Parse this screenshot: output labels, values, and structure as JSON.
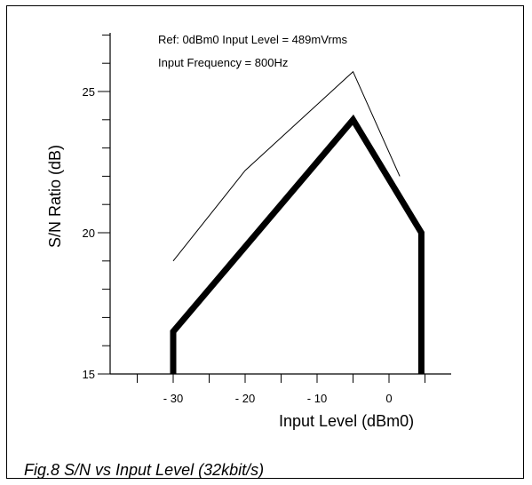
{
  "chart_data": {
    "type": "line",
    "title": "",
    "xlabel": "Input Level (dBm0)",
    "ylabel": "S/N Ratio (dB)",
    "xlim": [
      -38,
      5
    ],
    "ylim": [
      15,
      27
    ],
    "x_ticks": [
      -30,
      -20,
      -10,
      0
    ],
    "x_tick_labels": [
      "- 30",
      "- 20",
      "- 10",
      "0"
    ],
    "y_ticks": [
      15,
      20,
      25
    ],
    "y_tick_labels": [
      "15",
      "20",
      "25"
    ],
    "annotations": [
      "Ref: 0dBm0 Input Level = 489mVrms",
      "Input Frequency = 800Hz"
    ],
    "grid": false,
    "series": [
      {
        "style": "thin",
        "color": "#000000",
        "x": [
          -30,
          -20,
          -5,
          1.5
        ],
        "y": [
          19.0,
          22.2,
          25.7,
          22.0
        ]
      },
      {
        "style": "thick",
        "color": "#000000",
        "x": [
          -30,
          -30,
          -5,
          4.5,
          4.5
        ],
        "y": [
          15.0,
          16.5,
          24.0,
          20.0,
          15.0
        ]
      }
    ]
  },
  "caption": "Fig.8 S/N vs Input Level (32kbit/s)"
}
